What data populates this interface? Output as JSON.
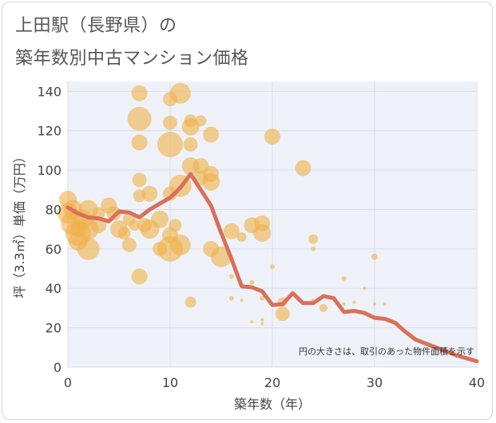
{
  "title": {
    "line1": "上田駅（長野県）の",
    "line2": "築年数別中古マンション価格"
  },
  "chart_data": {
    "type": "scatter",
    "title": "上田駅（長野県）の 築年数別中古マンション価格",
    "xlabel": "築年数（年）",
    "ylabel": "坪（3.3㎡）単価（万円）",
    "xlim": [
      0,
      40
    ],
    "ylim": [
      0,
      145
    ],
    "xticks": [
      0,
      10,
      20,
      30,
      40
    ],
    "yticks": [
      0,
      20,
      40,
      60,
      80,
      100,
      120,
      140
    ],
    "grid": true,
    "note": "円の大きさは、取引のあった物件面積を示す",
    "colors": {
      "bubble": "#f0b048",
      "line": "#d9705a",
      "grid": "#d9dfe8",
      "plot_bg": "#eef2f8"
    },
    "scatter_series": {
      "points": [
        {
          "x": 0,
          "y": 85,
          "s": 11
        },
        {
          "x": 0,
          "y": 78,
          "s": 13
        },
        {
          "x": 0.5,
          "y": 80,
          "s": 12
        },
        {
          "x": 0.5,
          "y": 73,
          "s": 15
        },
        {
          "x": 1,
          "y": 68,
          "s": 16
        },
        {
          "x": 1,
          "y": 64,
          "s": 12
        },
        {
          "x": 1,
          "y": 70,
          "s": 10
        },
        {
          "x": 1.5,
          "y": 75,
          "s": 12
        },
        {
          "x": 2,
          "y": 80,
          "s": 12
        },
        {
          "x": 2,
          "y": 70,
          "s": 13
        },
        {
          "x": 2,
          "y": 60,
          "s": 14
        },
        {
          "x": 3,
          "y": 72,
          "s": 10
        },
        {
          "x": 3,
          "y": 78,
          "s": 8
        },
        {
          "x": 4,
          "y": 82,
          "s": 10
        },
        {
          "x": 4.5,
          "y": 78,
          "s": 9
        },
        {
          "x": 5,
          "y": 70,
          "s": 11
        },
        {
          "x": 5.5,
          "y": 68,
          "s": 8
        },
        {
          "x": 6,
          "y": 62,
          "s": 9
        },
        {
          "x": 6,
          "y": 75,
          "s": 8
        },
        {
          "x": 6.5,
          "y": 72,
          "s": 7
        },
        {
          "x": 7,
          "y": 139,
          "s": 10
        },
        {
          "x": 7,
          "y": 126,
          "s": 15
        },
        {
          "x": 7,
          "y": 114,
          "s": 10
        },
        {
          "x": 7,
          "y": 95,
          "s": 9
        },
        {
          "x": 7,
          "y": 87,
          "s": 8
        },
        {
          "x": 7,
          "y": 46,
          "s": 10
        },
        {
          "x": 7.5,
          "y": 72,
          "s": 9
        },
        {
          "x": 8,
          "y": 88,
          "s": 10
        },
        {
          "x": 8,
          "y": 70,
          "s": 12
        },
        {
          "x": 9,
          "y": 75,
          "s": 11
        },
        {
          "x": 9,
          "y": 60,
          "s": 9
        },
        {
          "x": 10,
          "y": 136,
          "s": 9
        },
        {
          "x": 10,
          "y": 124,
          "s": 9
        },
        {
          "x": 10,
          "y": 113,
          "s": 16
        },
        {
          "x": 10,
          "y": 88,
          "s": 9
        },
        {
          "x": 10,
          "y": 67,
          "s": 10
        },
        {
          "x": 10,
          "y": 60,
          "s": 16
        },
        {
          "x": 10.5,
          "y": 72,
          "s": 8
        },
        {
          "x": 11,
          "y": 139,
          "s": 13
        },
        {
          "x": 11,
          "y": 92,
          "s": 14
        },
        {
          "x": 11,
          "y": 62,
          "s": 13
        },
        {
          "x": 12,
          "y": 125,
          "s": 8
        },
        {
          "x": 12,
          "y": 122,
          "s": 11
        },
        {
          "x": 12,
          "y": 113,
          "s": 9
        },
        {
          "x": 12,
          "y": 102,
          "s": 11
        },
        {
          "x": 12,
          "y": 33,
          "s": 7
        },
        {
          "x": 13,
          "y": 125,
          "s": 7
        },
        {
          "x": 13,
          "y": 102,
          "s": 10
        },
        {
          "x": 13,
          "y": 96,
          "s": 9
        },
        {
          "x": 14,
          "y": 118,
          "s": 10
        },
        {
          "x": 14,
          "y": 98,
          "s": 10
        },
        {
          "x": 14,
          "y": 94,
          "s": 11
        },
        {
          "x": 14,
          "y": 60,
          "s": 10
        },
        {
          "x": 15,
          "y": 56,
          "s": 13
        },
        {
          "x": 16,
          "y": 69,
          "s": 10
        },
        {
          "x": 16,
          "y": 46,
          "s": 3
        },
        {
          "x": 16,
          "y": 35,
          "s": 3
        },
        {
          "x": 17,
          "y": 66,
          "s": 6
        },
        {
          "x": 17,
          "y": 34,
          "s": 2
        },
        {
          "x": 18,
          "y": 72,
          "s": 10
        },
        {
          "x": 18,
          "y": 43,
          "s": 3
        },
        {
          "x": 18,
          "y": 23,
          "s": 2
        },
        {
          "x": 19,
          "y": 73,
          "s": 10
        },
        {
          "x": 19,
          "y": 68,
          "s": 11
        },
        {
          "x": 19,
          "y": 35,
          "s": 3
        },
        {
          "x": 19,
          "y": 24,
          "s": 2
        },
        {
          "x": 19,
          "y": 22,
          "s": 2
        },
        {
          "x": 20,
          "y": 117,
          "s": 10
        },
        {
          "x": 20,
          "y": 51,
          "s": 3
        },
        {
          "x": 20,
          "y": 32,
          "s": 2
        },
        {
          "x": 21,
          "y": 33,
          "s": 6
        },
        {
          "x": 21,
          "y": 27,
          "s": 9
        },
        {
          "x": 23,
          "y": 101,
          "s": 10
        },
        {
          "x": 24,
          "y": 65,
          "s": 6
        },
        {
          "x": 24,
          "y": 60,
          "s": 3
        },
        {
          "x": 24,
          "y": 34,
          "s": 2
        },
        {
          "x": 25,
          "y": 30,
          "s": 5
        },
        {
          "x": 27,
          "y": 45,
          "s": 3
        },
        {
          "x": 27,
          "y": 32,
          "s": 2
        },
        {
          "x": 28,
          "y": 33,
          "s": 2
        },
        {
          "x": 29,
          "y": 40,
          "s": 2
        },
        {
          "x": 30,
          "y": 56,
          "s": 4
        },
        {
          "x": 30,
          "y": 32,
          "s": 2
        },
        {
          "x": 31,
          "y": 32,
          "s": 2
        }
      ]
    },
    "line_series": {
      "x": [
        0,
        1,
        2,
        3,
        4,
        5,
        6,
        7,
        8,
        9,
        10,
        11,
        12,
        13,
        14,
        15,
        16,
        17,
        18,
        19,
        20,
        21,
        22,
        23,
        24,
        25,
        26,
        27,
        28,
        29,
        30,
        31,
        32,
        33,
        34,
        35,
        36,
        37,
        38,
        39,
        40
      ],
      "y": [
        81,
        78,
        76,
        75.5,
        74,
        79,
        78.5,
        76,
        80,
        83,
        86,
        91,
        98,
        90,
        82,
        68,
        55,
        41,
        40.5,
        38.5,
        31.5,
        32,
        37.5,
        32.5,
        32.5,
        36,
        35,
        28,
        28.5,
        27.5,
        25,
        24.5,
        22.5,
        18,
        14,
        12,
        10,
        8,
        6,
        4.5,
        3
      ]
    }
  }
}
